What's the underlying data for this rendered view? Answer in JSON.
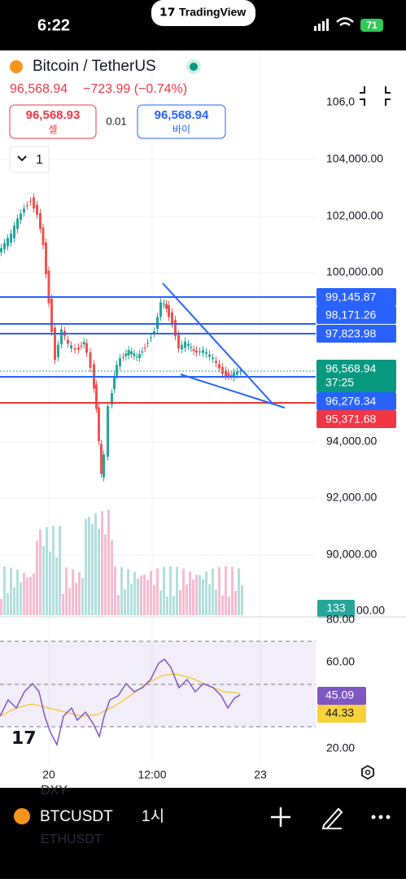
{
  "status": {
    "time": "6:22",
    "app": "TradingView",
    "battery": "71"
  },
  "header": {
    "symbol": "Bitcoin / TetherUS",
    "price": "96,568.94",
    "change": "−723.99 (−0.74%)",
    "sell_price": "96,568.93",
    "sell_label": "셀",
    "spread": "0.01",
    "buy_price": "96,568.94",
    "buy_label": "바이",
    "interval": "1"
  },
  "price_axis": [
    "106,0",
    "104,000.00",
    "102,000.00",
    "100,000.00",
    "94,000.00",
    "92,000.00",
    "90,000.00",
    "00.00"
  ],
  "price_lines": [
    "99,145.87",
    "98,171.26",
    "97,823.98",
    "96,568.94",
    "37:25",
    "96,276.34",
    "95,371.68"
  ],
  "volume_label": "133",
  "rsi_axis": [
    "80.00",
    "60.00",
    "20.00"
  ],
  "rsi_values": [
    "45.09",
    "44.33"
  ],
  "time_axis": [
    "20",
    "12:00",
    "23"
  ],
  "bottom": {
    "symbol": "BTCUSDT",
    "interval": "1시",
    "ghost_1": "DXY",
    "ghost_2": "ETHUSDT"
  }
}
